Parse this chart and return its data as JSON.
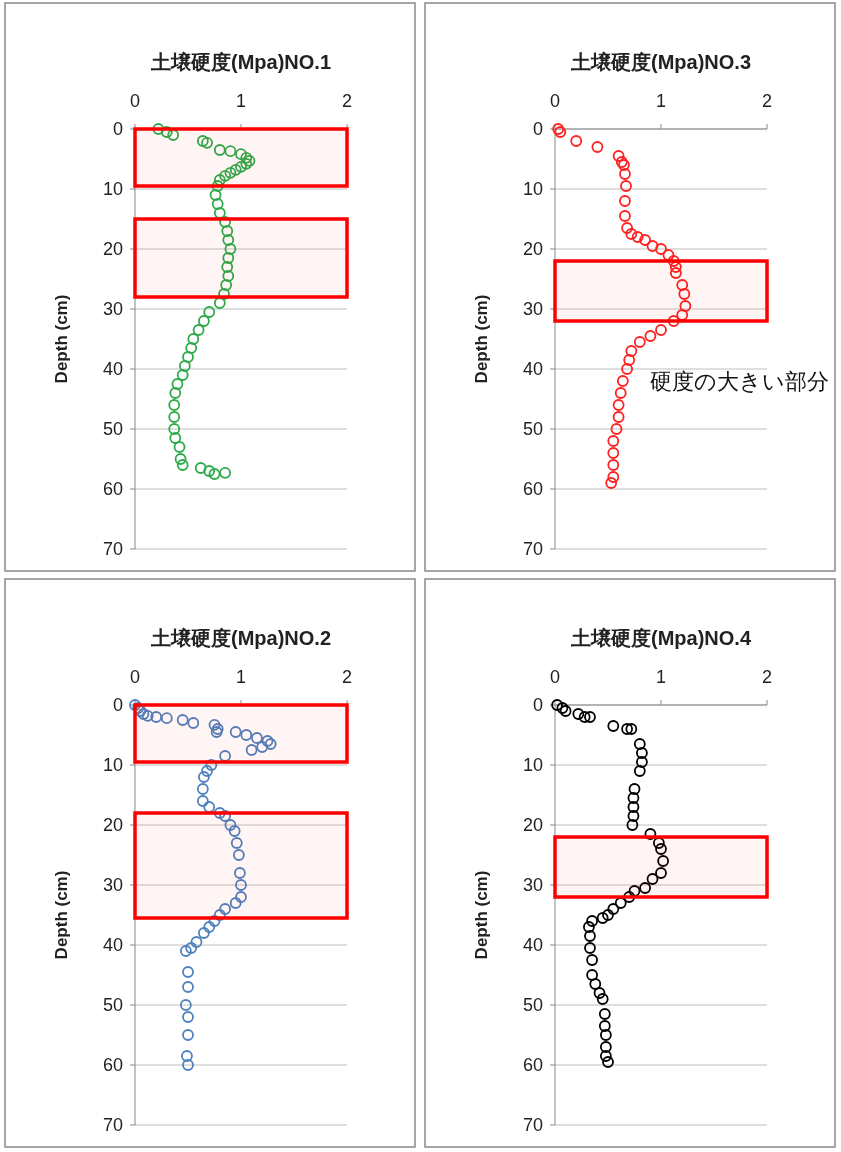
{
  "chart_data": [
    {
      "type": "scatter",
      "title": "土壌硬度(Mpa)NO.1",
      "ylabel": "Depth (cm)",
      "xlim": [
        0,
        2
      ],
      "xticks": [
        0,
        1,
        2
      ],
      "ylim": [
        70,
        0
      ],
      "yticks": [
        0,
        10,
        20,
        30,
        40,
        50,
        60,
        70
      ],
      "grid": "y",
      "marker": "circle",
      "series": [
        {
          "color": "#2eaa4a",
          "x": [
            0.22,
            0.3,
            0.36,
            0.64,
            0.68,
            0.8,
            0.9,
            1.0,
            1.05,
            1.08,
            1.05,
            1.0,
            0.95,
            0.9,
            0.85,
            0.8,
            0.78,
            0.76,
            0.78,
            0.8,
            0.85,
            0.87,
            0.88,
            0.9,
            0.88,
            0.87,
            0.88,
            0.86,
            0.84,
            0.8,
            0.7,
            0.65,
            0.6,
            0.55,
            0.53,
            0.5,
            0.47,
            0.45,
            0.4,
            0.38,
            0.37,
            0.37,
            0.37,
            0.38,
            0.42,
            0.43,
            0.45,
            0.62,
            0.7,
            0.75,
            0.85
          ],
          "values": [
            0,
            0.5,
            1,
            2,
            2.3,
            3.5,
            3.7,
            4.2,
            4.8,
            5.3,
            5.8,
            6.3,
            6.8,
            7.3,
            7.8,
            8.5,
            9.5,
            11,
            12.5,
            14,
            15.5,
            17,
            18.5,
            20,
            21.5,
            23,
            24.5,
            26,
            27.5,
            29,
            30.5,
            32,
            33.5,
            35,
            36.5,
            38,
            39.5,
            41,
            42.5,
            44,
            46,
            48,
            50,
            51.5,
            53,
            55,
            56,
            56.5,
            57,
            57.5,
            57.3
          ]
        }
      ],
      "bands": [
        {
          "axis": "y",
          "from": 0,
          "to": 9.5,
          "color": "#ff0000"
        },
        {
          "axis": "y",
          "from": 15,
          "to": 28,
          "color": "#ff0000"
        }
      ]
    },
    {
      "type": "scatter",
      "title": "土壌硬度(Mpa)NO.3",
      "ylabel": "Depth (cm)",
      "xlim": [
        0,
        2
      ],
      "xticks": [
        0,
        1,
        2
      ],
      "ylim": [
        70,
        0
      ],
      "yticks": [
        0,
        10,
        20,
        30,
        40,
        50,
        60,
        70
      ],
      "grid": "y",
      "marker": "circle",
      "series": [
        {
          "color": "#ff2020",
          "x": [
            0.03,
            0.05,
            0.2,
            0.4,
            0.6,
            0.63,
            0.65,
            0.66,
            0.67,
            0.66,
            0.66,
            0.68,
            0.72,
            0.78,
            0.85,
            0.92,
            1.0,
            1.07,
            1.12,
            1.14,
            1.14,
            1.2,
            1.22,
            1.23,
            1.2,
            1.12,
            1.0,
            0.9,
            0.8,
            0.72,
            0.7,
            0.68,
            0.64,
            0.62,
            0.6,
            0.6,
            0.58,
            0.55,
            0.55,
            0.55,
            0.55,
            0.53
          ],
          "values": [
            0,
            0.5,
            2,
            3,
            4.5,
            5.5,
            6,
            7.5,
            9.5,
            12,
            14.5,
            16.5,
            17.5,
            18,
            18.5,
            19.5,
            20,
            21,
            22,
            23,
            24,
            26,
            27.5,
            29.5,
            31,
            32,
            33.5,
            34.5,
            35.5,
            37,
            38.5,
            40,
            42,
            44,
            46,
            48,
            50,
            52,
            54,
            56,
            58,
            59
          ]
        }
      ],
      "bands": [
        {
          "axis": "y",
          "from": 22,
          "to": 32,
          "color": "#ff0000"
        }
      ],
      "annotations": [
        "硬度の大きい部分"
      ]
    },
    {
      "type": "scatter",
      "title": "土壌硬度(Mpa)NO.2",
      "ylabel": "Depth (cm)",
      "xlim": [
        0,
        2
      ],
      "xticks": [
        0,
        1,
        2
      ],
      "ylim": [
        70,
        0
      ],
      "yticks": [
        0,
        10,
        20,
        30,
        40,
        50,
        60,
        70
      ],
      "grid": "y",
      "marker": "circle",
      "series": [
        {
          "color": "#4f81bd",
          "x": [
            0.0,
            0.03,
            0.05,
            0.08,
            0.12,
            0.2,
            0.3,
            0.45,
            0.55,
            0.75,
            0.78,
            0.77,
            0.95,
            1.05,
            1.15,
            1.25,
            1.28,
            1.2,
            1.1,
            0.85,
            0.72,
            0.68,
            0.65,
            0.64,
            0.64,
            0.7,
            0.8,
            0.85,
            0.9,
            0.94,
            0.96,
            0.98,
            0.99,
            1.0,
            1.0,
            0.95,
            0.85,
            0.8,
            0.75,
            0.7,
            0.65,
            0.58,
            0.53,
            0.48,
            0.5,
            0.5,
            0.48,
            0.5,
            0.5,
            0.49,
            0.5
          ],
          "values": [
            0,
            0.5,
            1,
            1.5,
            1.8,
            2,
            2.2,
            2.5,
            3,
            3.3,
            4,
            4.5,
            4.5,
            5,
            5.5,
            6,
            6.5,
            7,
            7.5,
            8.5,
            10,
            11,
            12,
            14,
            16,
            17,
            18,
            18.5,
            20,
            21,
            23,
            25,
            28,
            30,
            32,
            33,
            34,
            35,
            36,
            37,
            38,
            39.5,
            40.5,
            41,
            44.5,
            47,
            50,
            52,
            55,
            58.5,
            60
          ]
        }
      ],
      "bands": [
        {
          "axis": "y",
          "from": 0,
          "to": 9.5,
          "color": "#ff0000"
        },
        {
          "axis": "y",
          "from": 18,
          "to": 35.5,
          "color": "#ff0000"
        }
      ]
    },
    {
      "type": "scatter",
      "title": "土壌硬度(Mpa)NO.4",
      "ylabel": "Depth (cm)",
      "xlim": [
        0,
        2
      ],
      "xticks": [
        0,
        1,
        2
      ],
      "ylim": [
        70,
        0
      ],
      "yticks": [
        0,
        10,
        20,
        30,
        40,
        50,
        60,
        70
      ],
      "grid": "y",
      "marker": "circle",
      "series": [
        {
          "color": "#000000",
          "x": [
            0.02,
            0.07,
            0.1,
            0.22,
            0.28,
            0.33,
            0.55,
            0.68,
            0.72,
            0.8,
            0.82,
            0.82,
            0.8,
            0.75,
            0.74,
            0.74,
            0.74,
            0.73,
            0.9,
            0.98,
            1.0,
            1.02,
            1.0,
            0.92,
            0.85,
            0.75,
            0.7,
            0.62,
            0.55,
            0.5,
            0.45,
            0.35,
            0.32,
            0.33,
            0.33,
            0.35,
            0.35,
            0.38,
            0.42,
            0.45,
            0.47,
            0.47,
            0.48,
            0.48,
            0.48,
            0.5
          ],
          "values": [
            0,
            0.5,
            1,
            1.5,
            2,
            2,
            3.5,
            4,
            4,
            6.5,
            8,
            9.5,
            11,
            14,
            15.5,
            17,
            18.5,
            20,
            21.5,
            23,
            24,
            26,
            28,
            29,
            30.5,
            31,
            32,
            33,
            34,
            35,
            35.5,
            36,
            37,
            38.5,
            40.5,
            42.5,
            45,
            46.5,
            48,
            49,
            51.5,
            53.5,
            55,
            57,
            58.5,
            59.5
          ]
        }
      ],
      "bands": [
        {
          "axis": "y",
          "from": 22,
          "to": 32,
          "color": "#ff0000"
        }
      ]
    }
  ]
}
